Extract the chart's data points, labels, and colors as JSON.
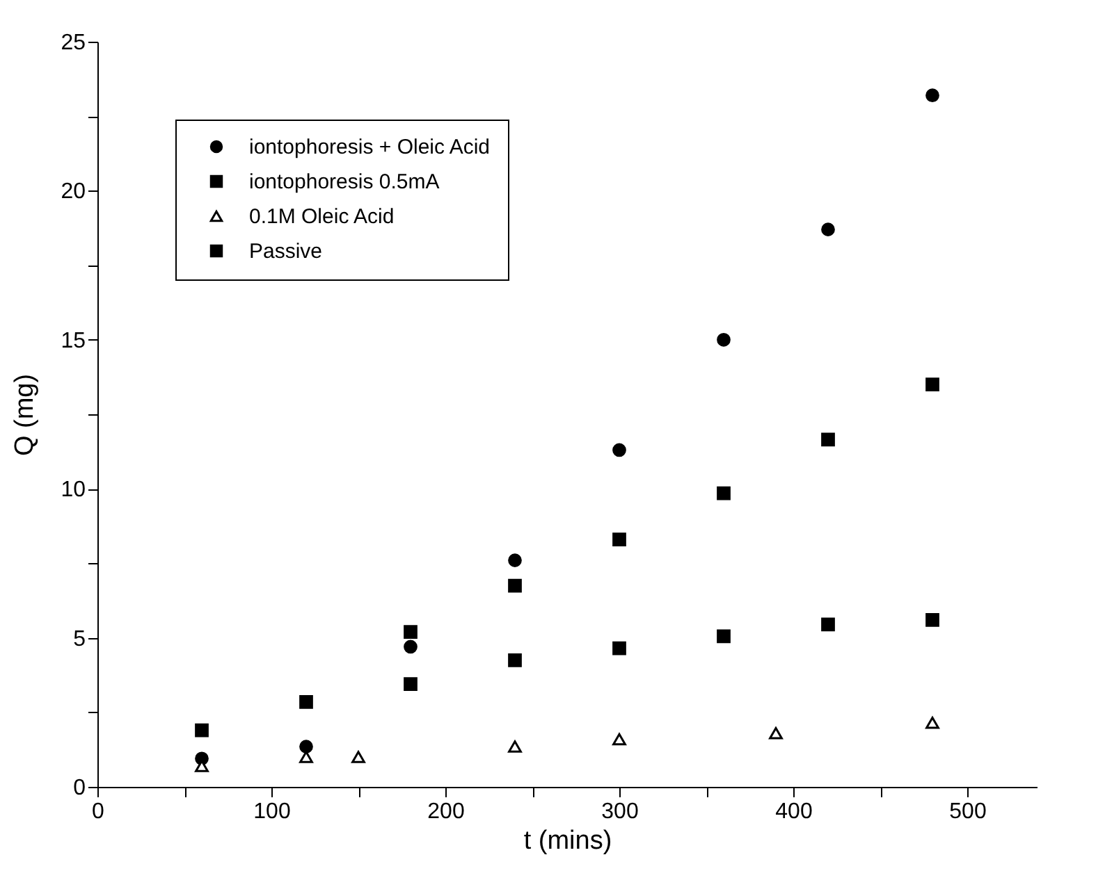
{
  "chart_data": {
    "type": "scatter",
    "xlabel": "t (mins)",
    "ylabel": "Q (mg)",
    "xlim": [
      0,
      540
    ],
    "xticks": [
      0,
      {
        "value": 50,
        "label": null
      },
      100,
      {
        "value": 150,
        "label": null
      },
      200,
      {
        "value": 250,
        "label": null
      },
      300,
      {
        "value": 350,
        "label": null
      },
      400,
      {
        "value": 450,
        "label": null
      },
      500
    ],
    "ylim": [
      0,
      25
    ],
    "yticks": [
      0,
      {
        "value": 2.5,
        "label": null
      },
      5,
      {
        "value": 7.5,
        "label": null
      },
      10,
      {
        "value": 12.5,
        "label": null
      },
      15,
      {
        "value": 17.5,
        "label": null
      },
      20,
      {
        "value": 22.5,
        "label": null
      },
      25
    ],
    "grid": false,
    "legend": "top left",
    "series": [
      {
        "name": "iontophoresis + Oleic Acid",
        "color": "#000000",
        "marker": "circle",
        "x": [
          60,
          120,
          180,
          240,
          300,
          360,
          420,
          480
        ],
        "values": [
          0.95,
          1.35,
          4.7,
          7.6,
          11.3,
          15.0,
          18.7,
          23.2
        ]
      },
      {
        "name": "iontophoresis 0.5mA",
        "color": "#000000",
        "marker": "square",
        "x": [
          180,
          240,
          300,
          360,
          420,
          480
        ],
        "values": [
          5.2,
          6.75,
          8.3,
          9.85,
          11.65,
          13.5
        ]
      },
      {
        "name": "0.1M Oleic Acid",
        "color": "#000000",
        "marker": "triangle",
        "x": [
          60,
          120,
          150,
          240,
          300,
          390,
          480
        ],
        "values": [
          0.7,
          1.0,
          1.0,
          1.35,
          1.6,
          1.8,
          2.15
        ]
      },
      {
        "name": "Passive",
        "color": "#000000",
        "marker": "square",
        "x": [
          60,
          120,
          180,
          240,
          300,
          360,
          420,
          480
        ],
        "values": [
          1.9,
          2.85,
          3.45,
          4.25,
          4.65,
          5.05,
          5.45,
          5.6
        ]
      }
    ]
  }
}
